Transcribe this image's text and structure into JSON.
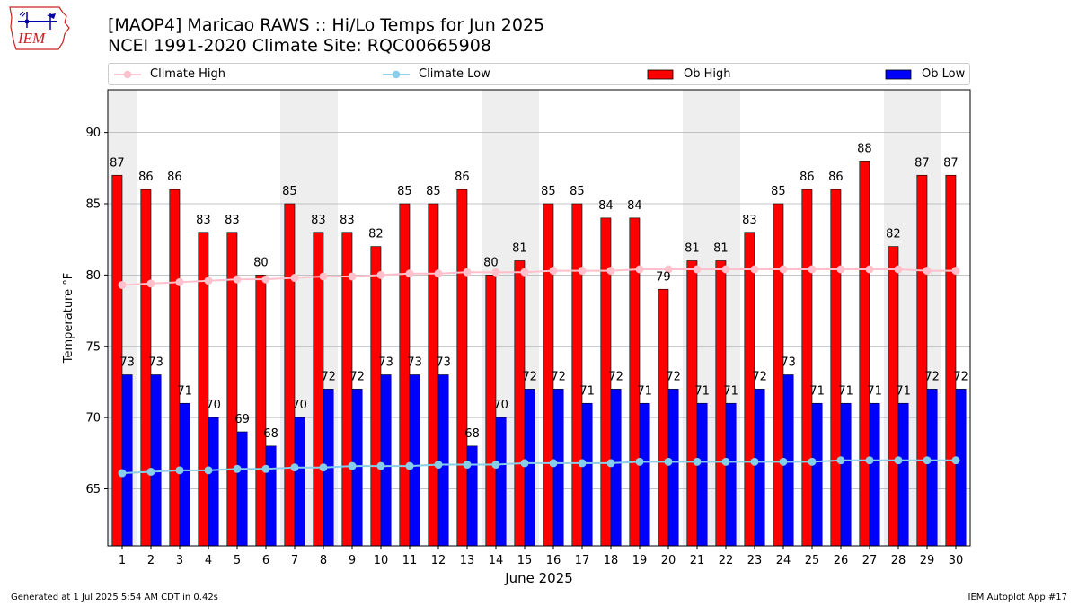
{
  "header": {
    "logo_text": "IEM",
    "title_line1": "[MAOP4] Maricao RAWS :: Hi/Lo Temps for Jun 2025",
    "title_line2": "NCEI 1991-2020 Climate Site: RQC00665908"
  },
  "legend": {
    "placement": "top",
    "items": [
      {
        "label": "Climate High",
        "color": "#ffc0cb",
        "style": "line-marker"
      },
      {
        "label": "Climate Low",
        "color": "#87ceeb",
        "style": "line-marker"
      },
      {
        "label": "Ob High",
        "color": "#ff0000",
        "style": "bar"
      },
      {
        "label": "Ob Low",
        "color": "#0000ff",
        "style": "bar"
      }
    ]
  },
  "footer": {
    "left": "Generated at 1 Jul 2025 5:54 AM CDT in 0.42s",
    "right": "IEM Autoplot App #17"
  },
  "chart_data": {
    "type": "bar",
    "xlabel": "June 2025",
    "ylabel": "Temperature °F",
    "ylim": [
      61,
      93
    ],
    "yticks": [
      65,
      70,
      75,
      80,
      85,
      90
    ],
    "grid": "horizontal",
    "weekend_shading_color": "#eeeeee",
    "categories": [
      1,
      2,
      3,
      4,
      5,
      6,
      7,
      8,
      9,
      10,
      11,
      12,
      13,
      14,
      15,
      16,
      17,
      18,
      19,
      20,
      21,
      22,
      23,
      24,
      25,
      26,
      27,
      28,
      29,
      30
    ],
    "shaded_days": [
      1,
      7,
      8,
      14,
      15,
      21,
      22,
      28,
      29
    ],
    "series": [
      {
        "name": "Ob High",
        "type": "bar",
        "color": "#ff0000",
        "values": [
          87,
          86,
          86,
          83,
          83,
          80,
          85,
          83,
          83,
          82,
          85,
          85,
          86,
          80,
          81,
          85,
          85,
          84,
          84,
          79,
          81,
          81,
          83,
          85,
          86,
          86,
          88,
          82,
          87,
          87
        ]
      },
      {
        "name": "Ob Low",
        "type": "bar",
        "color": "#0000ff",
        "values": [
          73,
          73,
          71,
          70,
          69,
          68,
          70,
          72,
          72,
          73,
          73,
          73,
          68,
          70,
          72,
          72,
          71,
          72,
          71,
          72,
          71,
          71,
          72,
          73,
          71,
          71,
          71,
          71,
          72,
          72
        ]
      },
      {
        "name": "Climate High",
        "type": "line",
        "color": "#ffc0cb",
        "values": [
          79.3,
          79.4,
          79.5,
          79.6,
          79.7,
          79.7,
          79.8,
          79.9,
          79.9,
          80.0,
          80.1,
          80.1,
          80.2,
          80.2,
          80.2,
          80.3,
          80.3,
          80.3,
          80.4,
          80.4,
          80.4,
          80.4,
          80.4,
          80.4,
          80.4,
          80.4,
          80.4,
          80.4,
          80.3,
          80.3
        ]
      },
      {
        "name": "Climate Low",
        "type": "line",
        "color": "#87ceeb",
        "values": [
          66.1,
          66.2,
          66.3,
          66.3,
          66.4,
          66.4,
          66.5,
          66.5,
          66.6,
          66.6,
          66.6,
          66.7,
          66.7,
          66.7,
          66.8,
          66.8,
          66.8,
          66.8,
          66.9,
          66.9,
          66.9,
          66.9,
          66.9,
          66.9,
          66.9,
          67.0,
          67.0,
          67.0,
          67.0,
          67.0
        ]
      }
    ]
  }
}
